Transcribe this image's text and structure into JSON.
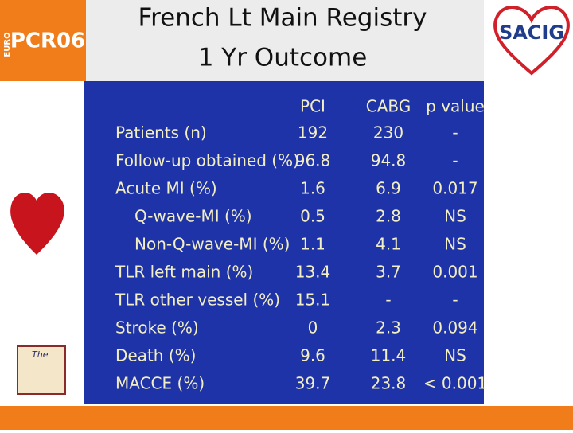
{
  "header": {
    "title": [
      "French Lt Main Registry",
      "1 Yr Outcome"
    ],
    "left_logo": {
      "prefix": "EURO",
      "name": "PCR06"
    },
    "right_logo": "SACIG",
    "small_logo": "The"
  },
  "table": {
    "columns": [
      "",
      "PCI",
      "CABG",
      "p value"
    ],
    "rows": [
      [
        "Patients (n)",
        "192",
        "230",
        "-"
      ],
      [
        "Follow-up obtained (%)",
        "96.8",
        "94.8",
        "-"
      ],
      [
        "Acute MI (%)",
        "1.6",
        "6.9",
        "0.017"
      ],
      [
        "Q-wave-MI (%)",
        "0.5",
        "2.8",
        "NS"
      ],
      [
        "Non-Q-wave-MI (%)",
        "1.1",
        "4.1",
        "NS"
      ],
      [
        "TLR left main (%)",
        "13.4",
        "3.7",
        "0.001"
      ],
      [
        "TLR other vessel (%)",
        "15.1",
        "-",
        "-"
      ],
      [
        "Stroke (%)",
        "0",
        "2.3",
        "0.094"
      ],
      [
        "Death (%)",
        "9.6",
        "11.4",
        "NS"
      ],
      [
        "MACCE (%)",
        "39.7",
        "23.8",
        "< 0.001"
      ]
    ]
  }
}
